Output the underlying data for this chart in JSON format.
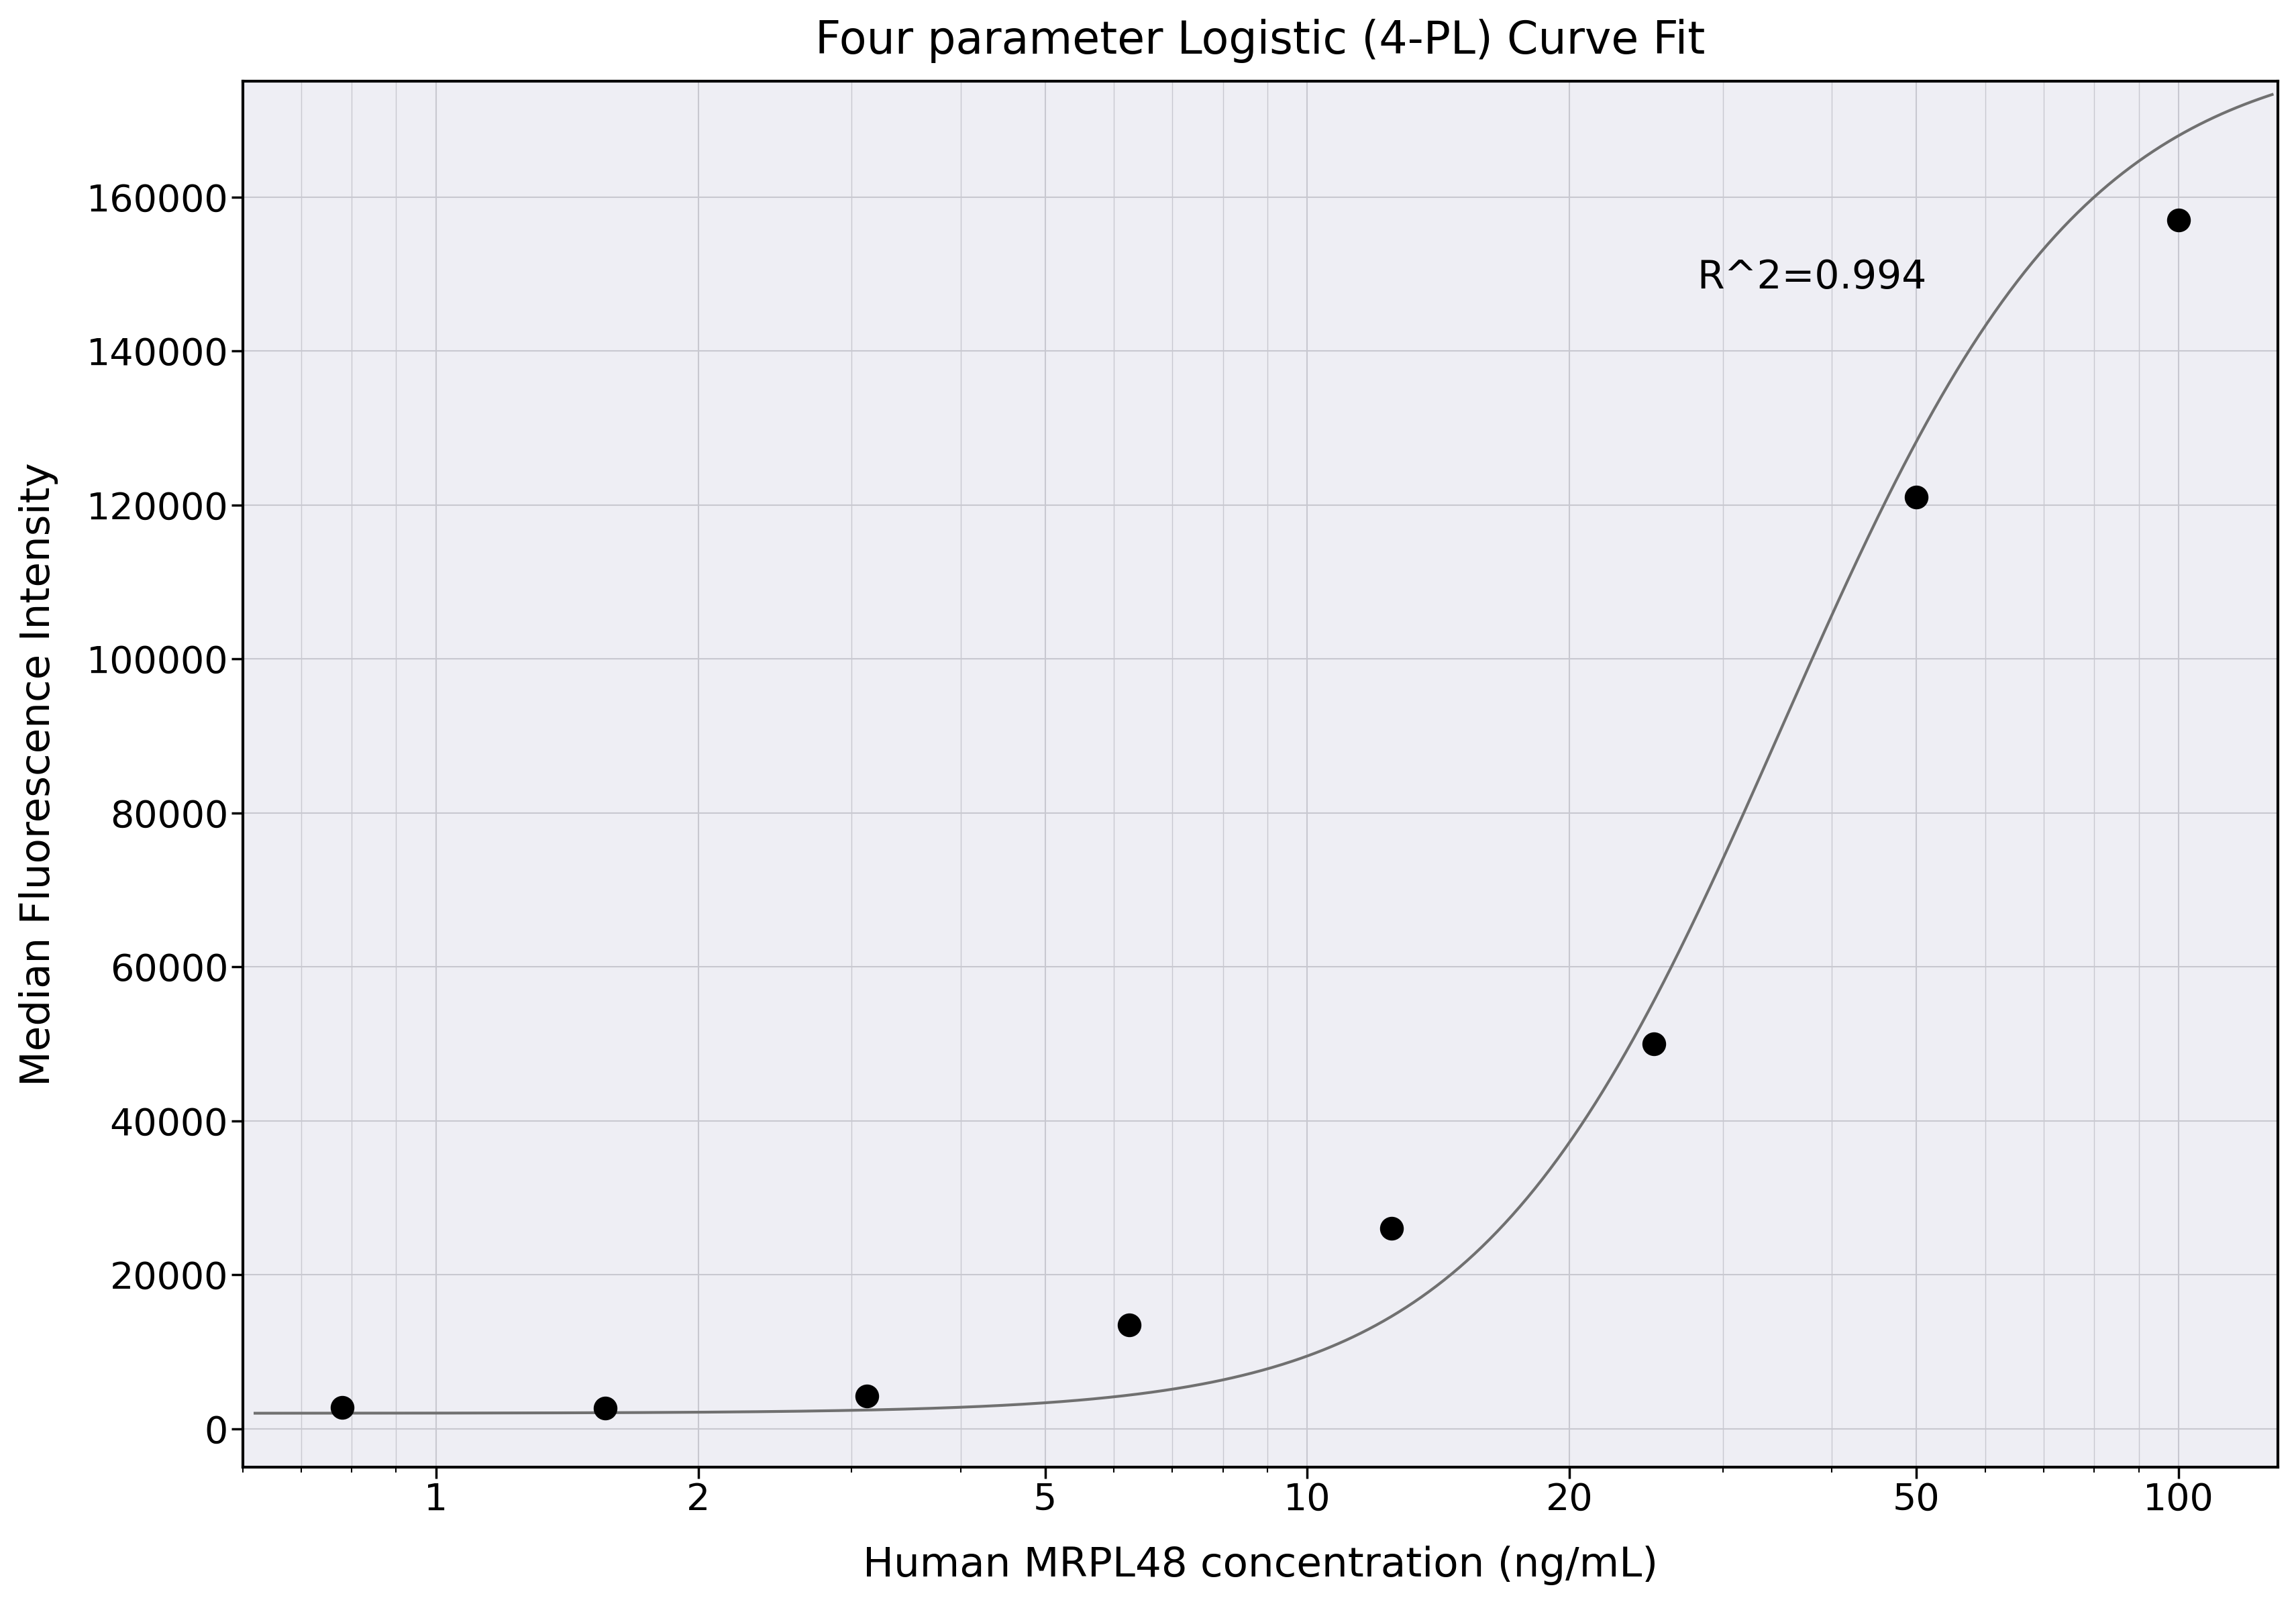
{
  "title": "Four parameter Logistic (4-PL) Curve Fit",
  "xlabel": "Human MRPL48 concentration (ng/mL)",
  "ylabel": "Median Fluorescence Intensity",
  "scatter_x": [
    0.78,
    1.563,
    3.125,
    6.25,
    12.5,
    25,
    50,
    100
  ],
  "scatter_y": [
    2800,
    2700,
    4200,
    13500,
    26000,
    50000,
    121000,
    157000
  ],
  "r_squared": "R^2=0.994",
  "r_squared_x": 28,
  "r_squared_y": 152000,
  "xscale": "log",
  "xlim": [
    0.6,
    130
  ],
  "ylim": [
    -5000,
    175000
  ],
  "xticks": [
    1,
    2,
    5,
    10,
    20,
    50,
    100
  ],
  "yticks": [
    0,
    20000,
    40000,
    60000,
    80000,
    100000,
    120000,
    140000,
    160000
  ],
  "grid_color": "#c8c8d0",
  "curve_color": "#707070",
  "scatter_color": "#000000",
  "background_color": "#ffffff",
  "plot_bg_color": "#eeeef4",
  "title_fontsize": 48,
  "label_fontsize": 44,
  "tick_fontsize": 40,
  "annotation_fontsize": 42,
  "4pl_A": 2000,
  "4pl_B": 2.5,
  "4pl_C": 35,
  "4pl_D": 180000
}
